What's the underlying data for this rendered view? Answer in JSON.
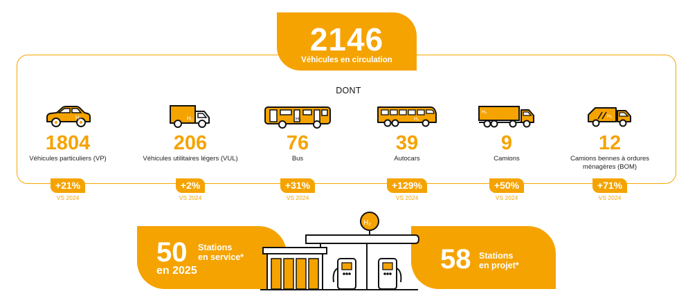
{
  "hero": {
    "value": "2146",
    "label": "Véhicules en circulation"
  },
  "dont": "DONT",
  "vs_label": "VS 2024",
  "categories": [
    {
      "value": "1804",
      "label": "Véhicules particuliers (VP)",
      "change": "+21%",
      "icon": "car-icon"
    },
    {
      "value": "206",
      "label": "Véhicules utilitaires légers (VUL)",
      "change": "+2%",
      "icon": "van-icon"
    },
    {
      "value": "76",
      "label": "Bus",
      "change": "+31%",
      "icon": "bus-icon"
    },
    {
      "value": "39",
      "label": "Autocars",
      "change": "+129%",
      "icon": "coach-icon"
    },
    {
      "value": "9",
      "label": "Camions",
      "change": "+50%",
      "icon": "truck-icon"
    },
    {
      "value": "12",
      "label": "Camions bennes à ordures ménagères (BOM)",
      "change": "+71%",
      "icon": "garbage-truck-icon"
    }
  ],
  "h2_label": "H₂",
  "stations_service": {
    "value": "50",
    "label_line1": "Stations",
    "label_line2": "en service*",
    "year": "en 2025"
  },
  "stations_projet": {
    "value": "58",
    "label_line1": "Stations",
    "label_line2": "en projet*"
  },
  "colors": {
    "accent": "#f5a300",
    "text": "#111111"
  }
}
